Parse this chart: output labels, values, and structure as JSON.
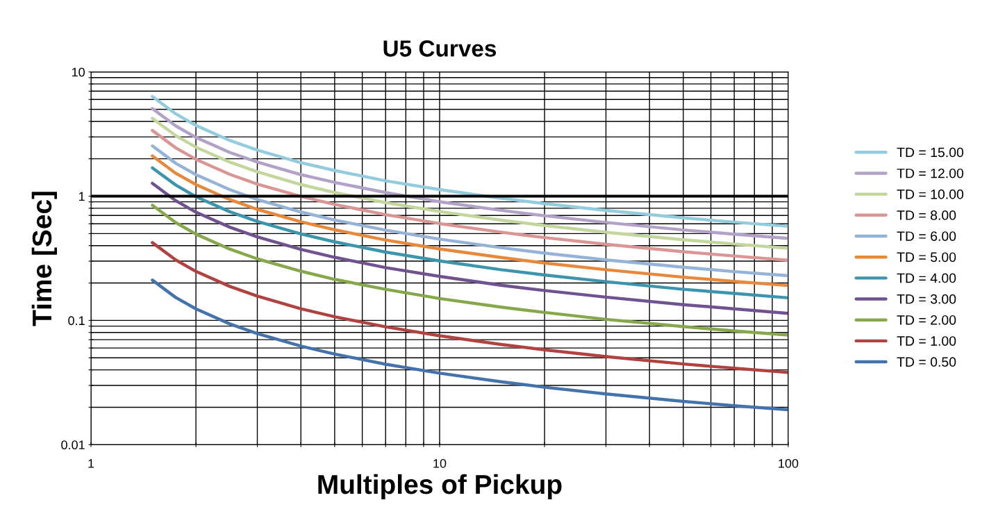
{
  "chart_data": {
    "type": "line",
    "title": "U5 Curves",
    "xlabel": "Multiples of Pickup",
    "ylabel": "Time [Sec]",
    "log": "xy",
    "grid": true,
    "legend": "right",
    "marker": "none",
    "line_style": "solid",
    "xlim": [
      1,
      100
    ],
    "ylim": [
      0.01,
      10
    ],
    "xticks": [
      1,
      {
        "value": 2,
        "label": null
      },
      {
        "value": 3,
        "label": null
      },
      {
        "value": 4,
        "label": null
      },
      {
        "value": 5,
        "label": null
      },
      {
        "value": 6,
        "label": null
      },
      {
        "value": 7,
        "label": null
      },
      {
        "value": 8,
        "label": null
      },
      {
        "value": 9,
        "label": null
      },
      10,
      {
        "value": 20,
        "label": null
      },
      {
        "value": 30,
        "label": null
      },
      {
        "value": 40,
        "label": null
      },
      {
        "value": 50,
        "label": null
      },
      {
        "value": 60,
        "label": null
      },
      {
        "value": 70,
        "label": null
      },
      {
        "value": 80,
        "label": null
      },
      {
        "value": 90,
        "label": null
      },
      100
    ],
    "yticks": [
      0.01,
      {
        "value": 0.02,
        "label": null
      },
      {
        "value": 0.03,
        "label": null
      },
      {
        "value": 0.04,
        "label": null
      },
      {
        "value": 0.05,
        "label": null
      },
      {
        "value": 0.06,
        "label": null
      },
      {
        "value": 0.07,
        "label": null
      },
      {
        "value": 0.08,
        "label": null
      },
      {
        "value": 0.09,
        "label": null
      },
      0.1,
      {
        "value": 0.2,
        "label": null
      },
      {
        "value": 0.3,
        "label": null
      },
      {
        "value": 0.4,
        "label": null
      },
      {
        "value": 0.5,
        "label": null
      },
      {
        "value": 0.6,
        "label": null
      },
      {
        "value": 0.7,
        "label": null
      },
      {
        "value": 0.8,
        "label": null
      },
      {
        "value": 0.9,
        "label": null
      },
      1,
      {
        "value": 2,
        "label": null
      },
      {
        "value": 3,
        "label": null
      },
      {
        "value": 4,
        "label": null
      },
      {
        "value": 5,
        "label": null
      },
      {
        "value": 6,
        "label": null
      },
      {
        "value": 7,
        "label": null
      },
      {
        "value": 8,
        "label": null
      },
      {
        "value": 9,
        "label": null
      },
      10
    ],
    "ref_lines": [
      {
        "axis": "y",
        "value": 1,
        "color": "#000000"
      }
    ],
    "x": [
      1.5,
      1.75,
      2,
      2.5,
      3,
      4,
      5,
      7,
      10,
      15,
      20,
      30,
      50,
      70,
      100
    ],
    "series": [
      {
        "name": "TD = 15.00",
        "color": "#93cddd",
        "values": [
          6.34,
          4.6,
          3.71,
          2.81,
          2.35,
          1.86,
          1.61,
          1.33,
          1.13,
          0.962,
          0.87,
          0.768,
          0.669,
          0.618,
          0.572
        ]
      },
      {
        "name": "TD = 12.00",
        "color": "#b3a2c7",
        "values": [
          5.07,
          3.68,
          2.97,
          2.25,
          1.88,
          1.49,
          1.29,
          1.07,
          0.902,
          0.769,
          0.696,
          0.614,
          0.535,
          0.494,
          0.457
        ]
      },
      {
        "name": "TD = 10.00",
        "color": "#c3d69b",
        "values": [
          4.23,
          3.07,
          2.48,
          1.88,
          1.57,
          1.24,
          1.07,
          0.888,
          0.752,
          0.641,
          0.58,
          0.512,
          0.446,
          0.412,
          0.381
        ]
      },
      {
        "name": "TD = 8.00",
        "color": "#d99694",
        "values": [
          3.38,
          2.45,
          1.98,
          1.5,
          1.25,
          0.994,
          0.858,
          0.71,
          0.602,
          0.513,
          0.464,
          0.41,
          0.357,
          0.33,
          0.305
        ]
      },
      {
        "name": "TD = 6.00",
        "color": "#95b3d7",
        "values": [
          2.54,
          1.84,
          1.49,
          1.13,
          0.94,
          0.746,
          0.643,
          0.533,
          0.451,
          0.385,
          0.348,
          0.307,
          0.268,
          0.247,
          0.229
        ]
      },
      {
        "name": "TD = 5.00",
        "color": "#e8883a",
        "values": [
          2.11,
          1.53,
          1.24,
          0.938,
          0.783,
          0.622,
          0.536,
          0.444,
          0.376,
          0.321,
          0.29,
          0.256,
          0.223,
          0.206,
          0.191
        ]
      },
      {
        "name": "TD = 4.00",
        "color": "#3a95ad",
        "values": [
          1.69,
          1.23,
          0.99,
          0.75,
          0.626,
          0.497,
          0.429,
          0.355,
          0.301,
          0.256,
          0.232,
          0.205,
          0.178,
          0.165,
          0.152
        ]
      },
      {
        "name": "TD = 3.00",
        "color": "#6f528f",
        "values": [
          1.27,
          0.92,
          0.743,
          0.563,
          0.47,
          0.373,
          0.322,
          0.266,
          0.226,
          0.192,
          0.174,
          0.154,
          0.134,
          0.124,
          0.114
        ]
      },
      {
        "name": "TD = 2.00",
        "color": "#86a84a",
        "values": [
          0.845,
          0.613,
          0.495,
          0.375,
          0.313,
          0.249,
          0.214,
          0.178,
          0.15,
          0.128,
          0.116,
          0.102,
          0.0892,
          0.0824,
          0.0762
        ]
      },
      {
        "name": "TD = 1.00",
        "color": "#b04240",
        "values": [
          0.423,
          0.307,
          0.248,
          0.188,
          0.157,
          0.124,
          0.107,
          0.0888,
          0.0752,
          0.0641,
          0.058,
          0.0512,
          0.0446,
          0.0412,
          0.0381
        ]
      },
      {
        "name": "TD = 0.50",
        "color": "#4472aa",
        "values": [
          0.211,
          0.153,
          0.124,
          0.0938,
          0.0783,
          0.0622,
          0.0536,
          0.0444,
          0.0376,
          0.0321,
          0.029,
          0.0256,
          0.0223,
          0.0206,
          0.0191
        ]
      }
    ]
  }
}
